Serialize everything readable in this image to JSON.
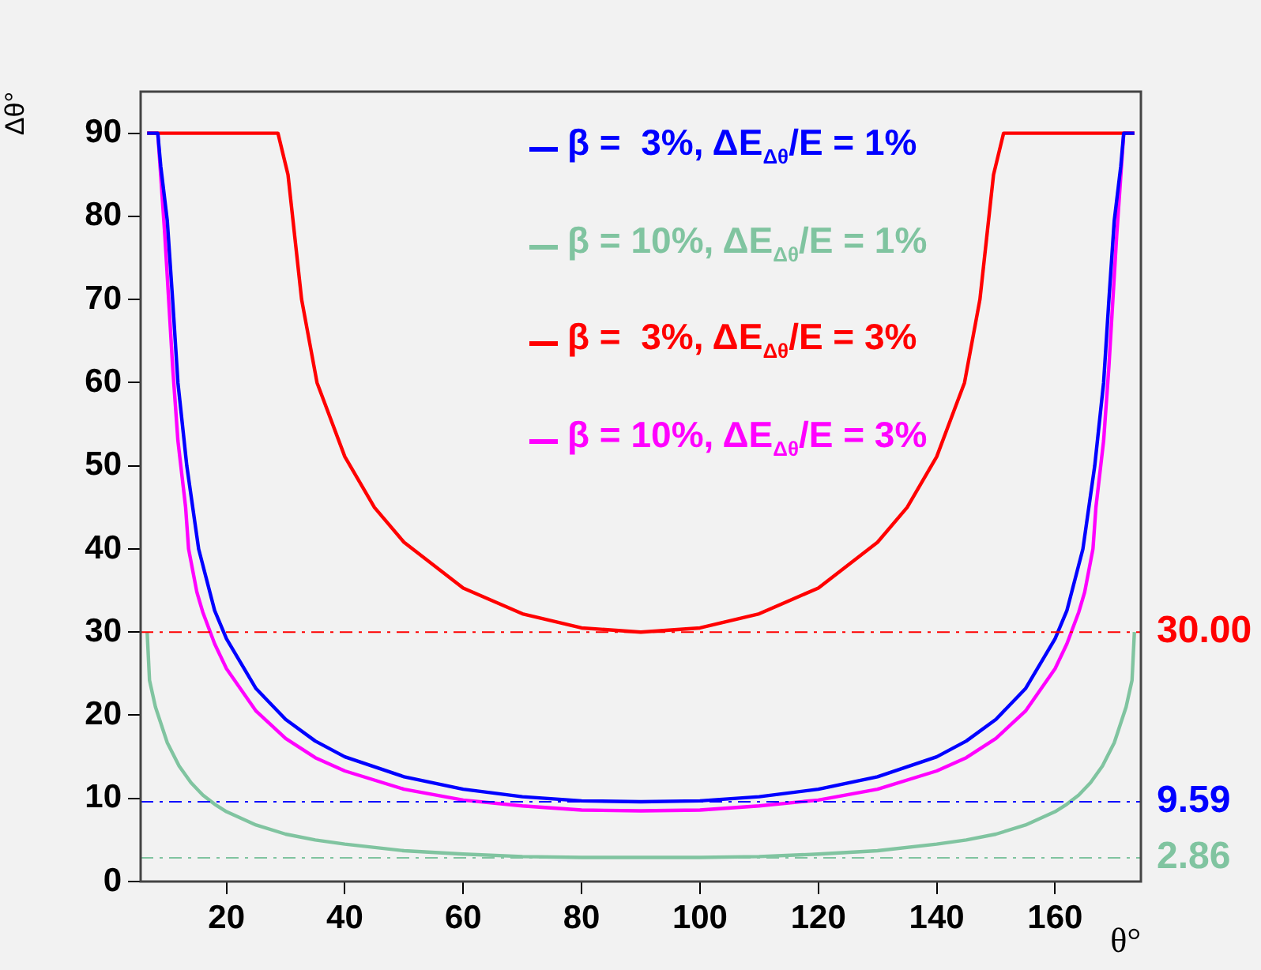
{
  "chart_data": {
    "type": "line",
    "xlabel": "θ°",
    "ylabel": "Δθ°",
    "xlim": [
      5.5,
      174.5
    ],
    "xticks": [
      20,
      40,
      60,
      80,
      100,
      120,
      140,
      160
    ],
    "ylim": [
      0,
      95
    ],
    "yticks": [
      0,
      10,
      20,
      30,
      40,
      50,
      60,
      70,
      80,
      90
    ],
    "grid": false,
    "legend": "top",
    "marker": "none",
    "line_style": "solid",
    "series": [
      {
        "name": "β =  3%, ΔE$_{Δθ}$/E = 1%",
        "color": "#0000ff",
        "x": [
          6.6,
          8.4,
          8.9,
          10,
          10.9,
          11.8,
          13.3,
          15.3,
          18,
          20,
          25,
          30,
          35,
          40,
          50,
          60,
          70,
          80,
          90,
          100,
          110,
          120,
          130,
          140,
          145,
          150,
          155,
          160,
          162,
          164.7,
          166.7,
          168.2,
          169.1,
          170,
          171.1,
          171.6,
          173.4
        ],
        "values": [
          90,
          90,
          86,
          79.5,
          70,
          60,
          50,
          40,
          32.6,
          29.2,
          23.2,
          19.5,
          16.9,
          15,
          12.6,
          11.1,
          10.2,
          9.7,
          9.6,
          9.7,
          10.2,
          11.1,
          12.6,
          15,
          16.9,
          19.5,
          23.2,
          29.2,
          32.6,
          40,
          50,
          60,
          70,
          79.5,
          86,
          90,
          90
        ]
      },
      {
        "name": "β = 10%, ΔE$_{Δθ}$/E = 1%",
        "color": "#80c4a0",
        "x": [
          6.6,
          7,
          8,
          10,
          12,
          14,
          16,
          18,
          20,
          25,
          30,
          35,
          40,
          50,
          60,
          70,
          80,
          90,
          100,
          110,
          120,
          130,
          140,
          145,
          150,
          155,
          160,
          162,
          164,
          166,
          168,
          170,
          172,
          173,
          173.4
        ],
        "values": [
          30,
          24.2,
          21,
          16.7,
          13.9,
          11.9,
          10.4,
          9.3,
          8.4,
          6.8,
          5.7,
          5,
          4.5,
          3.7,
          3.3,
          3,
          2.9,
          2.9,
          2.9,
          3,
          3.3,
          3.7,
          4.5,
          5,
          5.7,
          6.8,
          8.4,
          9.3,
          10.4,
          11.9,
          13.9,
          16.7,
          21,
          24.2,
          30
        ]
      },
      {
        "name": "β =  3%, ΔE$_{Δθ}$/E = 3%",
        "color": "#ff0000",
        "x": [
          6.6,
          28.7,
          30.4,
          32.7,
          35.3,
          40,
          45,
          50,
          60,
          70,
          80,
          90,
          100,
          110,
          120,
          130,
          135,
          140,
          144.7,
          147.3,
          149.6,
          151.3,
          173.4
        ],
        "values": [
          90,
          90,
          85,
          70,
          60,
          51.1,
          45,
          40.8,
          35.3,
          32.2,
          30.5,
          30,
          30.5,
          32.2,
          35.3,
          40.8,
          45,
          51.1,
          60,
          70,
          85,
          90,
          90
        ]
      },
      {
        "name": "β = 10%, ΔE$_{Δθ}$/E = 3%",
        "color": "#ff00ff",
        "x": [
          6.6,
          8.4,
          9.6,
          10.9,
          11.8,
          13.1,
          13.6,
          15,
          16,
          18,
          20,
          25,
          30,
          35,
          40,
          50,
          60,
          70,
          80,
          90,
          100,
          110,
          120,
          130,
          140,
          145,
          150,
          155,
          160,
          162,
          164,
          165,
          166.4,
          166.9,
          168.2,
          169.1,
          170.4,
          171.6,
          173.4
        ],
        "values": [
          90,
          90,
          77.6,
          62,
          53,
          45,
          40,
          34.8,
          32.4,
          28.6,
          25.6,
          20.5,
          17.2,
          14.9,
          13.3,
          11.1,
          9.8,
          9.1,
          8.6,
          8.5,
          8.6,
          9.1,
          9.8,
          11.1,
          13.3,
          14.9,
          17.2,
          20.5,
          25.6,
          28.6,
          32.4,
          34.8,
          40,
          45,
          53,
          62,
          77.6,
          90,
          90
        ]
      }
    ],
    "ref_lines": [
      {
        "axis": "y",
        "value": 30,
        "label": "30.00",
        "color": "#ff0000",
        "line_style": "dashed"
      },
      {
        "axis": "y",
        "value": 9.59,
        "label": "9.59",
        "color": "#0000ff",
        "line_style": "dashed"
      },
      {
        "axis": "y",
        "value": 2.86,
        "label": "2.86",
        "color": "#80c4a0",
        "line_style": "dashed"
      }
    ]
  }
}
